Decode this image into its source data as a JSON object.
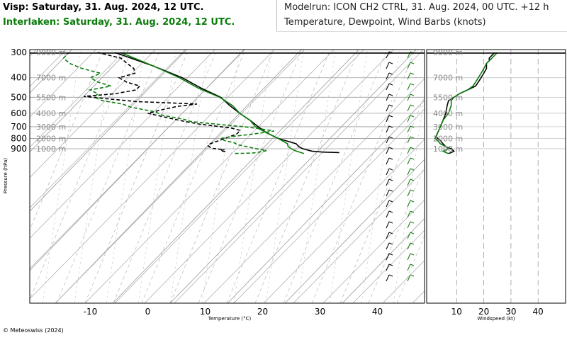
{
  "header": {
    "station_line": "Visp: Saturday, 31. Aug. 2024, 12 UTC.",
    "compare_line": "Interlaken: Saturday, 31. Aug. 2024, 12 UTC.",
    "model_line": "Modelrun: ICON CH2 CTRL, 31. Aug. 2024, 00 UTC. +12 h",
    "vars_line": "Temperature, Dewpoint, Wind Barbs (knots)"
  },
  "footer": {
    "copyright": "© Meteoswiss (2024)"
  },
  "colors": {
    "visp": "#000000",
    "interlaken": "#0a7d0a",
    "grid": "#9a9a9a"
  },
  "chart_data": [
    {
      "type": "line",
      "chart": "skew-T log-p sounding",
      "xlabel": "Temperature (°C)",
      "ylabel": "Pressure (hPa)",
      "x_ticks": [
        -10,
        0,
        10,
        20,
        30,
        40
      ],
      "y_ticks": [
        300,
        400,
        500,
        600,
        700,
        800,
        900
      ],
      "altitude_labels": [
        {
          "p": 300,
          "label": "9000 m"
        },
        {
          "p": 400,
          "label": "7000 m"
        },
        {
          "p": 500,
          "label": "5500 m"
        },
        {
          "p": 600,
          "label": "4000 m"
        },
        {
          "p": 700,
          "label": "3000 m"
        },
        {
          "p": 800,
          "label": "2000 m"
        },
        {
          "p": 900,
          "label": "1000 m"
        }
      ],
      "y_scale": "log",
      "series": [
        {
          "id": "visp_temp",
          "style": "solid",
          "color": "#000000",
          "points": [
            [
              940,
              34
            ],
            [
              935,
              31
            ],
            [
              925,
              29
            ],
            [
              900,
              27
            ],
            [
              880,
              26
            ],
            [
              850,
              25
            ],
            [
              800,
              21
            ],
            [
              750,
              18
            ],
            [
              700,
              15.5
            ],
            [
              650,
              13
            ],
            [
              600,
              10
            ],
            [
              550,
              7
            ],
            [
              500,
              4
            ],
            [
              450,
              -1
            ],
            [
              400,
              -6
            ],
            [
              350,
              -13
            ],
            [
              300,
              -22
            ]
          ]
        },
        {
          "id": "interlaken_temp",
          "style": "solid",
          "color": "#0a7d0a",
          "points": [
            [
              950,
              28
            ],
            [
              935,
              27
            ],
            [
              920,
              26
            ],
            [
              900,
              25
            ],
            [
              875,
              24
            ],
            [
              850,
              23.5
            ],
            [
              800,
              21
            ],
            [
              750,
              18
            ],
            [
              700,
              15
            ],
            [
              650,
              13
            ],
            [
              600,
              10
            ],
            [
              550,
              7.5
            ],
            [
              500,
              3.8
            ],
            [
              450,
              -1.5
            ],
            [
              400,
              -6.5
            ],
            [
              350,
              -13
            ],
            [
              300,
              -21
            ]
          ]
        },
        {
          "id": "visp_dew",
          "style": "dashed",
          "color": "#000000",
          "points": [
            [
              930,
              14
            ],
            [
              920,
              13
            ],
            [
              910,
              13.5
            ],
            [
              895,
              11
            ],
            [
              870,
              10
            ],
            [
              850,
              10
            ],
            [
              820,
              11
            ],
            [
              790,
              12
            ],
            [
              760,
              13
            ],
            [
              730,
              13
            ],
            [
              710,
              11
            ],
            [
              700,
              9
            ],
            [
              680,
              5
            ],
            [
              660,
              2
            ],
            [
              630,
              -2
            ],
            [
              600,
              -6
            ],
            [
              575,
              -4
            ],
            [
              555,
              -2
            ],
            [
              540,
              1
            ],
            [
              525,
              -10
            ],
            [
              510,
              -15
            ],
            [
              495,
              -20
            ],
            [
              480,
              -15
            ],
            [
              460,
              -12
            ],
            [
              440,
              -12
            ],
            [
              420,
              -15
            ],
            [
              400,
              -17
            ],
            [
              380,
              -15
            ],
            [
              360,
              -16
            ],
            [
              340,
              -18
            ],
            [
              320,
              -20
            ],
            [
              300,
              -25
            ]
          ]
        },
        {
          "id": "interlaken_dew",
          "style": "dashed",
          "color": "#0a7d0a",
          "points": [
            [
              950,
              16
            ],
            [
              945,
              19
            ],
            [
              935,
              20
            ],
            [
              920,
              21
            ],
            [
              900,
              19
            ],
            [
              880,
              17
            ],
            [
              860,
              15
            ],
            [
              840,
              14
            ],
            [
              820,
              12
            ],
            [
              800,
              11
            ],
            [
              780,
              13
            ],
            [
              760,
              16
            ],
            [
              735,
              19
            ],
            [
              715,
              16
            ],
            [
              700,
              13
            ],
            [
              680,
              8
            ],
            [
              660,
              3
            ],
            [
              640,
              1
            ],
            [
              615,
              -3
            ],
            [
              590,
              -5
            ],
            [
              560,
              -10
            ],
            [
              540,
              -12
            ],
            [
              520,
              -16
            ],
            [
              500,
              -18
            ],
            [
              480,
              -18
            ],
            [
              460,
              -20
            ],
            [
              440,
              -17
            ],
            [
              420,
              -20
            ],
            [
              400,
              -22
            ],
            [
              380,
              -21
            ],
            [
              360,
              -25
            ],
            [
              340,
              -28
            ],
            [
              320,
              -30
            ],
            [
              300,
              -30
            ]
          ]
        }
      ]
    },
    {
      "type": "line",
      "chart": "wind speed profile",
      "xlabel": "Windspeed (kt)",
      "x_ticks": [
        10,
        20,
        30,
        40
      ],
      "y_scale": "log",
      "series": [
        {
          "id": "visp_wind",
          "style": "solid",
          "color": "#000000",
          "points": [
            [
              950,
              7
            ],
            [
              940,
              8
            ],
            [
              925,
              9
            ],
            [
              900,
              8
            ],
            [
              880,
              6
            ],
            [
              850,
              5
            ],
            [
              820,
              4
            ],
            [
              800,
              3
            ],
            [
              780,
              2.5
            ],
            [
              750,
              3
            ],
            [
              700,
              4
            ],
            [
              650,
              5
            ],
            [
              600,
              6
            ],
            [
              550,
              6.5
            ],
            [
              520,
              7
            ],
            [
              500,
              9
            ],
            [
              480,
              11
            ],
            [
              460,
              14
            ],
            [
              440,
              17
            ],
            [
              420,
              18
            ],
            [
              400,
              19
            ],
            [
              380,
              20
            ],
            [
              360,
              21
            ],
            [
              340,
              21
            ],
            [
              330,
              22
            ],
            [
              320,
              22
            ],
            [
              300,
              24
            ]
          ]
        },
        {
          "id": "interlaken_wind",
          "style": "solid",
          "color": "#0a7d0a",
          "points": [
            [
              950,
              7
            ],
            [
              940,
              6
            ],
            [
              925,
              5
            ],
            [
              900,
              7
            ],
            [
              880,
              6
            ],
            [
              850,
              4
            ],
            [
              820,
              3
            ],
            [
              800,
              2
            ],
            [
              750,
              3
            ],
            [
              700,
              4
            ],
            [
              650,
              5
            ],
            [
              600,
              7
            ],
            [
              550,
              8
            ],
            [
              520,
              8
            ],
            [
              500,
              9
            ],
            [
              480,
              11
            ],
            [
              460,
              14
            ],
            [
              440,
              16
            ],
            [
              420,
              17
            ],
            [
              400,
              18
            ],
            [
              380,
              19
            ],
            [
              360,
              20
            ],
            [
              340,
              21
            ],
            [
              320,
              23
            ],
            [
              300,
              25
            ]
          ]
        }
      ]
    }
  ]
}
